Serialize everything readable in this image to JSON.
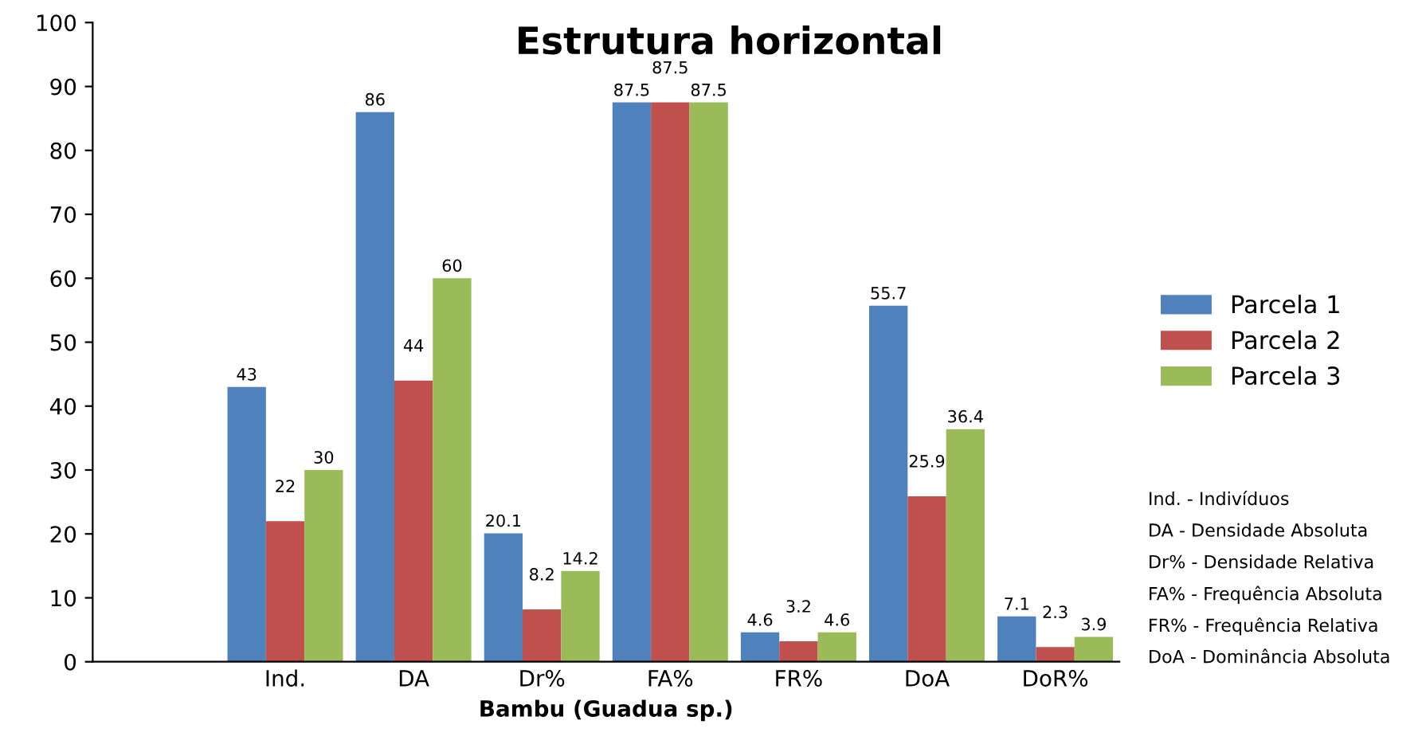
{
  "chart_data": {
    "type": "bar",
    "title": "Estrutura horizontal",
    "xlabel": "Bambu (Guadua sp.)",
    "categories": [
      null,
      "Ind.",
      "DA",
      "Dr%",
      "FA%",
      "FR%",
      "DoA",
      "DoR%"
    ],
    "series": [
      {
        "name": "Parcela 1",
        "color": "#4f81bd",
        "values": [
          null,
          43,
          86,
          20.1,
          87.5,
          4.6,
          55.7,
          7.1
        ]
      },
      {
        "name": "Parcela 2",
        "color": "#c0504d",
        "values": [
          null,
          22,
          44,
          8.2,
          87.5,
          3.2,
          25.9,
          2.3
        ]
      },
      {
        "name": "Parcela 3",
        "color": "#9bbb59",
        "values": [
          null,
          30,
          60,
          14.2,
          87.5,
          4.6,
          36.4,
          3.9
        ]
      }
    ],
    "ylim": [
      0,
      100
    ],
    "yticks": [
      0,
      10,
      20,
      30,
      40,
      50,
      60,
      70,
      80,
      90,
      100
    ],
    "data_labels": true,
    "legend": "right",
    "grid": false,
    "annotations": [
      "Ind. - Indivíduos",
      "DA - Densidade Absoluta",
      "Dr% - Densidade Relativa",
      "FA% - Frequência Absoluta",
      "FR% - Frequência Relativa",
      "DoA - Dominância Absoluta"
    ]
  }
}
